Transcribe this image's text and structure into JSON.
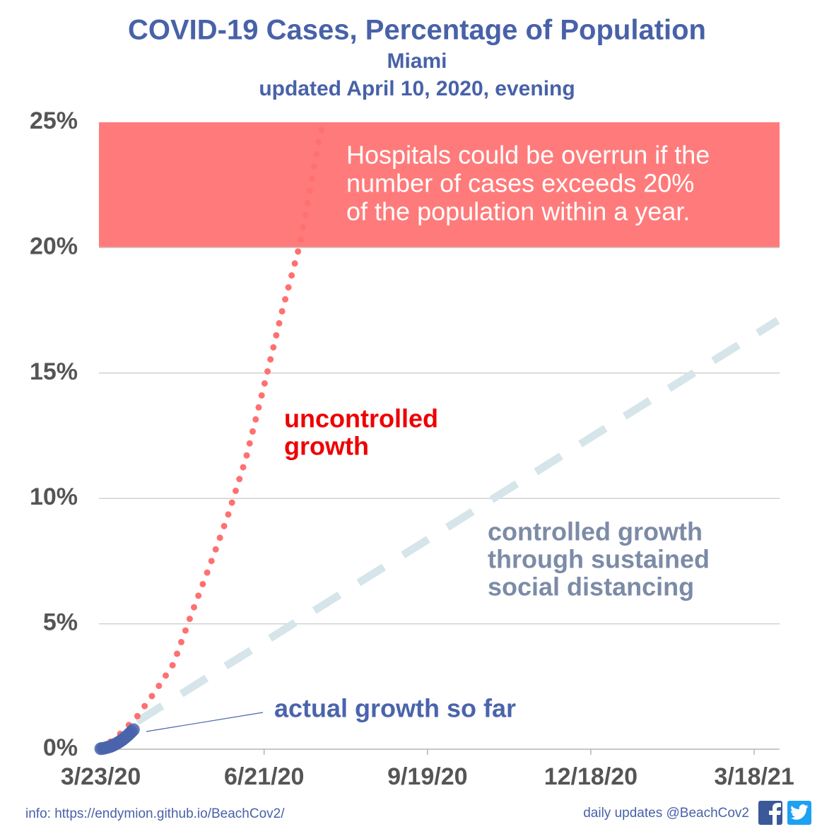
{
  "chart_data": {
    "type": "line",
    "title": "COVID-19 Cases, Percentage of Population",
    "subtitle": [
      "Miami",
      "updated April 10, 2020, evening"
    ],
    "xlim": [
      "2020-03-22",
      "2021-04-01"
    ],
    "xticks": [
      {
        "value": "2020-03-23",
        "label": "3/23/20"
      },
      {
        "value": "2020-06-21",
        "label": "6/21/20"
      },
      {
        "value": "2020-09-19",
        "label": "9/19/20"
      },
      {
        "value": "2020-12-18",
        "label": "12/18/20"
      },
      {
        "value": "2021-03-18",
        "label": "3/18/21"
      }
    ],
    "ylim": [
      0,
      25
    ],
    "yticks": [
      {
        "value": 0,
        "label": "0%"
      },
      {
        "value": 5,
        "label": "5%"
      },
      {
        "value": 10,
        "label": "10%"
      },
      {
        "value": 15,
        "label": "15%"
      },
      {
        "value": 20,
        "label": "20%"
      },
      {
        "value": 25,
        "label": "25%"
      }
    ],
    "grid": true,
    "band": {
      "ylim": [
        20,
        25
      ],
      "color": "#ff7b7b"
    },
    "series": [
      {
        "style": "dotted",
        "color": "#ff7070",
        "x": [
          "2020-03-23",
          "2020-04-02",
          "2020-04-12",
          "2020-04-22",
          "2020-05-02",
          "2020-05-12",
          "2020-05-22",
          "2020-06-01",
          "2020-06-11",
          "2020-06-21",
          "2020-07-01",
          "2020-07-11",
          "2020-07-21",
          "2020-07-23"
        ],
        "values": [
          0,
          0.56,
          1.3,
          2.3,
          3.4,
          5.4,
          7.3,
          9.3,
          11.6,
          14.5,
          17.5,
          20.2,
          24.2,
          24.8
        ]
      },
      {
        "style": "dashed",
        "color": "#d5e5ea",
        "x": [
          "2020-04-12",
          "2021-03-31"
        ],
        "values": [
          1.1,
          17.1
        ]
      },
      {
        "style": "markers",
        "color": "#4a64ac",
        "x": [
          "2020-03-23",
          "2020-03-24",
          "2020-03-25",
          "2020-03-26",
          "2020-03-27",
          "2020-03-28",
          "2020-03-29",
          "2020-03-30",
          "2020-03-31",
          "2020-04-01",
          "2020-04-02",
          "2020-04-03",
          "2020-04-04",
          "2020-04-05",
          "2020-04-06",
          "2020-04-07",
          "2020-04-08",
          "2020-04-09",
          "2020-04-10"
        ],
        "values": [
          0.02,
          0.03,
          0.04,
          0.06,
          0.08,
          0.1,
          0.13,
          0.16,
          0.2,
          0.24,
          0.28,
          0.33,
          0.38,
          0.44,
          0.5,
          0.56,
          0.63,
          0.7,
          0.78
        ]
      }
    ],
    "annotations": [
      {
        "lines": [
          "Hospitals could be overrun if the",
          "number of cases exceeds 20%",
          "of the population within a year."
        ],
        "color": "#ffffff"
      },
      {
        "lines": [
          "uncontrolled",
          "growth"
        ],
        "color": "#ee0000"
      },
      {
        "lines": [
          "controlled growth",
          "through sustained",
          "social distancing"
        ],
        "color": "#7c8ba6"
      },
      {
        "lines": [
          "actual growth so far"
        ],
        "color": "#4a64ac"
      }
    ],
    "footer": {
      "info": "info: https://endymion.github.io/BeachCov2/",
      "updates": "daily updates @BeachCov2"
    }
  }
}
